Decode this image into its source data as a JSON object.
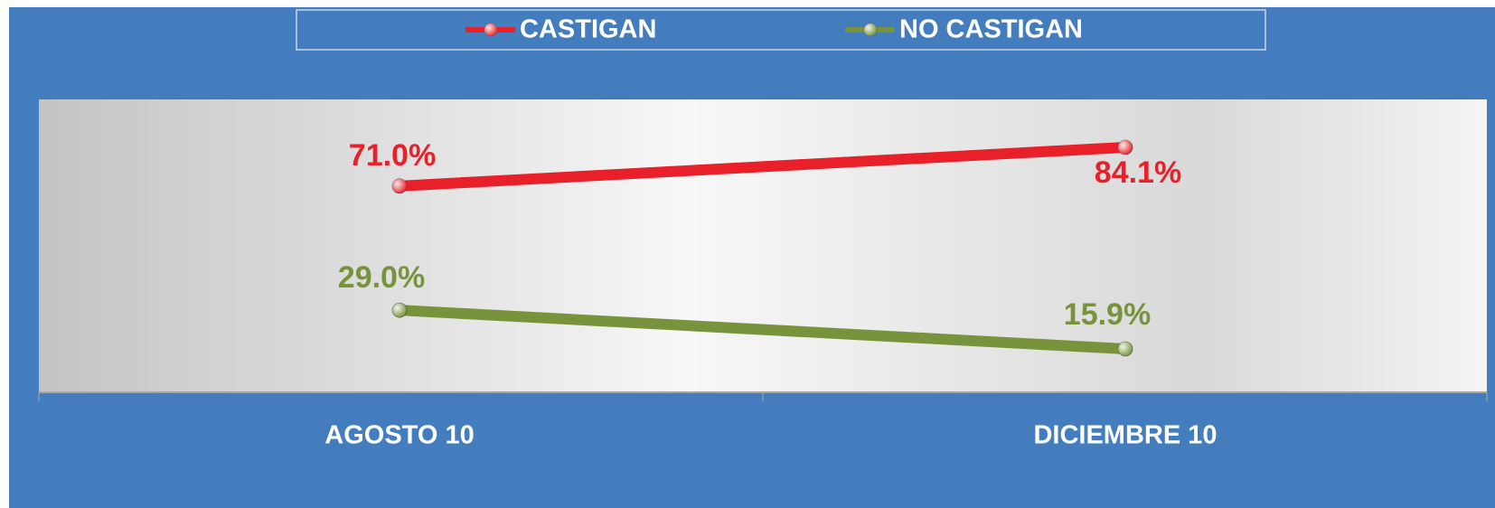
{
  "chart_data": {
    "type": "line",
    "categories": [
      "AGOSTO 10",
      "DICIEMBRE 10"
    ],
    "series": [
      {
        "name": "CASTIGAN",
        "color": "#e8202a",
        "values": [
          71.0,
          84.1
        ],
        "value_labels": [
          "71.0%",
          "84.1%"
        ]
      },
      {
        "name": "NO CASTIGAN",
        "color": "#77933c",
        "values": [
          29.0,
          15.9
        ],
        "value_labels": [
          "29.0%",
          "15.9%"
        ]
      }
    ],
    "legend": "top"
  }
}
